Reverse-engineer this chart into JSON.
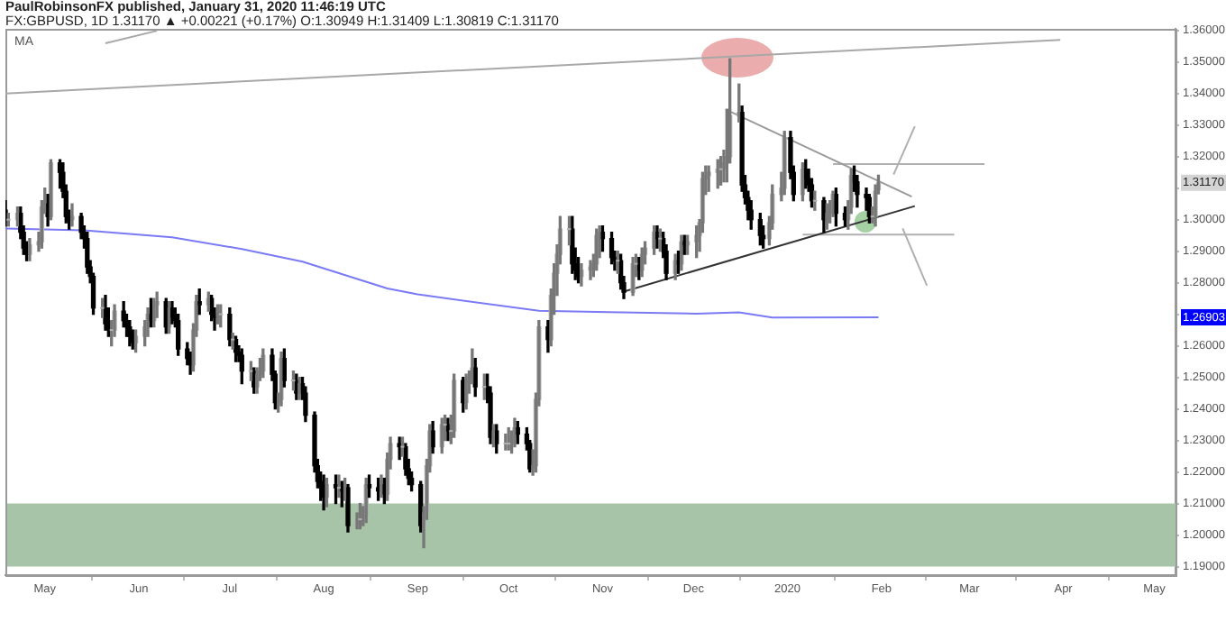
{
  "chart_data": {
    "type": "candlestick",
    "title": "PaulRobinsonFX published, January 31, 2020 11:46:19 UTC",
    "subtitle": "FX:GBPUSD, 1D  1.31170 ▲ +0.00221 (+0.17%) O:1.30949 H:1.31409 L:1.30819 C:1.31170",
    "xlim": [
      "2019-04-18",
      "2020-05-08"
    ],
    "xticks": [
      {
        "value": "2019-05-01",
        "label": "May"
      },
      {
        "value": "2019-06-01",
        "label": "Jun"
      },
      {
        "value": "2019-07-01",
        "label": "Jul"
      },
      {
        "value": "2019-08-01",
        "label": "Aug"
      },
      {
        "value": "2019-09-01",
        "label": "Sep"
      },
      {
        "value": "2019-10-01",
        "label": "Oct"
      },
      {
        "value": "2019-11-01",
        "label": "Nov"
      },
      {
        "value": "2019-12-01",
        "label": "Dec"
      },
      {
        "value": "2020-01-01",
        "label": "2020"
      },
      {
        "value": "2020-02-01",
        "label": "Feb"
      },
      {
        "value": "2020-03-01",
        "label": "Mar"
      },
      {
        "value": "2020-04-01",
        "label": "Apr"
      },
      {
        "value": "2020-05-01",
        "label": "May"
      }
    ],
    "ylim": [
      1.1873,
      1.3605
    ],
    "yticks": [
      {
        "value": 1.19,
        "label": "1.19000"
      },
      {
        "value": 1.2,
        "label": "1.20000"
      },
      {
        "value": 1.21,
        "label": "1.21000"
      },
      {
        "value": 1.22,
        "label": "1.22000"
      },
      {
        "value": 1.23,
        "label": "1.23000"
      },
      {
        "value": 1.24,
        "label": "1.24000"
      },
      {
        "value": 1.25,
        "label": "1.25000"
      },
      {
        "value": 1.26,
        "label": "1.26000"
      },
      {
        "value": 1.27,
        "label": null
      },
      {
        "value": 1.28,
        "label": "1.28000"
      },
      {
        "value": 1.29,
        "label": "1.29000"
      },
      {
        "value": 1.3,
        "label": "1.30000"
      },
      {
        "value": 1.31,
        "label": null
      },
      {
        "value": 1.32,
        "label": "1.32000"
      },
      {
        "value": 1.33,
        "label": "1.33000"
      },
      {
        "value": 1.34,
        "label": "1.34000"
      },
      {
        "value": 1.35,
        "label": "1.35000"
      },
      {
        "value": 1.36,
        "label": "1.36000"
      }
    ],
    "legend": "top left",
    "marker": "none",
    "annotations": [
      "1.31170",
      "1.26903"
    ],
    "bands": [
      {
        "axis": "y",
        "from": 1.19,
        "to": 1.21,
        "color": "#a8c4a8"
      }
    ],
    "series": [
      {
        "type": "line",
        "name": "MA",
        "color": "#7a7af5",
        "x": [
          "2019-04-18",
          "2019-05-14",
          "2019-06-12",
          "2019-07-05",
          "2019-07-25",
          "2019-08-22",
          "2019-09-01",
          "2019-10-11",
          "2019-11-03",
          "2019-12-02",
          "2019-12-16",
          "2019-12-27",
          "2020-01-31"
        ],
        "values": [
          1.2972,
          1.2966,
          1.2944,
          1.2907,
          1.2867,
          1.2782,
          1.2763,
          1.2711,
          1.2707,
          1.2702,
          1.2706,
          1.269,
          1.26903
        ]
      },
      {
        "type": "line",
        "color": "#a8a8a8",
        "x": [
          "2019-04-18",
          "2020-03-31"
        ],
        "values": [
          1.34,
          1.357
        ]
      },
      {
        "type": "line",
        "color": "#a8a8a8",
        "x": [
          "2019-05-21",
          "2019-06-07"
        ],
        "values": [
          1.3559,
          1.3599
        ]
      },
      {
        "type": "line",
        "color": "#9a9a9a",
        "x": [
          "2019-12-13",
          "2020-02-11"
        ],
        "values": [
          1.3343,
          1.3073
        ]
      },
      {
        "type": "line",
        "color": "#333333",
        "x": [
          "2019-11-08",
          "2020-02-12"
        ],
        "values": [
          1.2772,
          1.3043
        ]
      },
      {
        "type": "line",
        "color": "#b0b0b0",
        "x": [
          "2020-01-16",
          "2020-03-06"
        ],
        "values": [
          1.3176,
          1.3176
        ]
      },
      {
        "type": "line",
        "color": "#b0b0b0",
        "x": [
          "2020-01-06",
          "2020-02-25"
        ],
        "values": [
          1.2953,
          1.2953
        ]
      },
      {
        "type": "line",
        "color": "#b0b0b0",
        "x": [
          "2020-02-05",
          "2020-02-12"
        ],
        "values": [
          1.3143,
          1.3296
        ]
      },
      {
        "type": "line",
        "color": "#b0b0b0",
        "x": [
          "2020-02-08",
          "2020-02-16"
        ],
        "values": [
          1.2972,
          1.2791
        ]
      },
      {
        "x": [
          "2019-04-18",
          "2019-04-19",
          "2019-04-22",
          "2019-04-23",
          "2019-04-24",
          "2019-04-25",
          "2019-04-26",
          "2019-04-29",
          "2019-04-30",
          "2019-05-01",
          "2019-05-02",
          "2019-05-03",
          "2019-05-06",
          "2019-05-07",
          "2019-05-08",
          "2019-05-09",
          "2019-05-10",
          "2019-05-13",
          "2019-05-14",
          "2019-05-15",
          "2019-05-16",
          "2019-05-17",
          "2019-05-20",
          "2019-05-21",
          "2019-05-22",
          "2019-05-23",
          "2019-05-24",
          "2019-05-27",
          "2019-05-28",
          "2019-05-29",
          "2019-05-30",
          "2019-05-31",
          "2019-06-03",
          "2019-06-04",
          "2019-06-05",
          "2019-06-06",
          "2019-06-07",
          "2019-06-10",
          "2019-06-11",
          "2019-06-12",
          "2019-06-13",
          "2019-06-14",
          "2019-06-17",
          "2019-06-18",
          "2019-06-19",
          "2019-06-20",
          "2019-06-21",
          "2019-06-24",
          "2019-06-25",
          "2019-06-26",
          "2019-06-27",
          "2019-06-28",
          "2019-07-01",
          "2019-07-02",
          "2019-07-03",
          "2019-07-04",
          "2019-07-05",
          "2019-07-08",
          "2019-07-09",
          "2019-07-10",
          "2019-07-11",
          "2019-07-12",
          "2019-07-15",
          "2019-07-16",
          "2019-07-17",
          "2019-07-18",
          "2019-07-19",
          "2019-07-22",
          "2019-07-23",
          "2019-07-24",
          "2019-07-25",
          "2019-07-26",
          "2019-07-29",
          "2019-07-30",
          "2019-07-31",
          "2019-08-01",
          "2019-08-02",
          "2019-08-05",
          "2019-08-06",
          "2019-08-07",
          "2019-08-08",
          "2019-08-09",
          "2019-08-12",
          "2019-08-13",
          "2019-08-14",
          "2019-08-15",
          "2019-08-16",
          "2019-08-19",
          "2019-08-20",
          "2019-08-21",
          "2019-08-22",
          "2019-08-23",
          "2019-08-26",
          "2019-08-27",
          "2019-08-28",
          "2019-08-29",
          "2019-08-30",
          "2019-09-02",
          "2019-09-03",
          "2019-09-04",
          "2019-09-05",
          "2019-09-06",
          "2019-09-09",
          "2019-09-10",
          "2019-09-11",
          "2019-09-12",
          "2019-09-13",
          "2019-09-16",
          "2019-09-17",
          "2019-09-18",
          "2019-09-19",
          "2019-09-20",
          "2019-09-23",
          "2019-09-24",
          "2019-09-25",
          "2019-09-26",
          "2019-09-27",
          "2019-09-30",
          "2019-10-01",
          "2019-10-02",
          "2019-10-03",
          "2019-10-04",
          "2019-10-07",
          "2019-10-08",
          "2019-10-09",
          "2019-10-10",
          "2019-10-11",
          "2019-10-14",
          "2019-10-15",
          "2019-10-16",
          "2019-10-17",
          "2019-10-18",
          "2019-10-21",
          "2019-10-22",
          "2019-10-23",
          "2019-10-24",
          "2019-10-25",
          "2019-10-28",
          "2019-10-29",
          "2019-10-30",
          "2019-10-31",
          "2019-11-01",
          "2019-11-04",
          "2019-11-05",
          "2019-11-06",
          "2019-11-07",
          "2019-11-08",
          "2019-11-11",
          "2019-11-12",
          "2019-11-13",
          "2019-11-14",
          "2019-11-15",
          "2019-11-18",
          "2019-11-19",
          "2019-11-20",
          "2019-11-21",
          "2019-11-22",
          "2019-11-25",
          "2019-11-26",
          "2019-11-27",
          "2019-11-28",
          "2019-11-29",
          "2019-12-02",
          "2019-12-03",
          "2019-12-04",
          "2019-12-05",
          "2019-12-06",
          "2019-12-09",
          "2019-12-10",
          "2019-12-11",
          "2019-12-12",
          "2019-12-13",
          "2019-12-16",
          "2019-12-17",
          "2019-12-18",
          "2019-12-19",
          "2019-12-20",
          "2019-12-23",
          "2019-12-24",
          "2019-12-26",
          "2019-12-27",
          "2019-12-30",
          "2019-12-31",
          "2020-01-02",
          "2020-01-03",
          "2020-01-06",
          "2020-01-07",
          "2020-01-08",
          "2020-01-09",
          "2020-01-10",
          "2020-01-13",
          "2020-01-14",
          "2020-01-15",
          "2020-01-16",
          "2020-01-17",
          "2020-01-20",
          "2020-01-21",
          "2020-01-22",
          "2020-01-23",
          "2020-01-24",
          "2020-01-27",
          "2020-01-28",
          "2020-01-29",
          "2020-01-30",
          "2020-01-31"
        ],
        "ohlc": [
          [
            1.303,
            1.306,
            1.298,
            1.3
          ],
          [
            1.3,
            1.302,
            1.298,
            1.3
          ],
          [
            1.3,
            1.304,
            1.298,
            1.302
          ],
          [
            1.302,
            1.304,
            1.294,
            1.296
          ],
          [
            1.296,
            1.298,
            1.289,
            1.291
          ],
          [
            1.291,
            1.293,
            1.287,
            1.289
          ],
          [
            1.289,
            1.294,
            1.287,
            1.292
          ],
          [
            1.292,
            1.296,
            1.29,
            1.293
          ],
          [
            1.293,
            1.306,
            1.291,
            1.304
          ],
          [
            1.304,
            1.31,
            1.302,
            1.305
          ],
          [
            1.305,
            1.308,
            1.298,
            1.301
          ],
          [
            1.301,
            1.319,
            1.3,
            1.318
          ],
          [
            1.318,
            1.319,
            1.31,
            1.315
          ],
          [
            1.315,
            1.318,
            1.307,
            1.309
          ],
          [
            1.309,
            1.311,
            1.299,
            1.301
          ],
          [
            1.301,
            1.303,
            1.297,
            1.3
          ],
          [
            1.3,
            1.305,
            1.298,
            1.301
          ],
          [
            1.301,
            1.302,
            1.294,
            1.296
          ],
          [
            1.296,
            1.298,
            1.291,
            1.294
          ],
          [
            1.294,
            1.296,
            1.283,
            1.285
          ],
          [
            1.285,
            1.287,
            1.28,
            1.282
          ],
          [
            1.282,
            1.283,
            1.27,
            1.272
          ],
          [
            1.272,
            1.275,
            1.269,
            1.272
          ],
          [
            1.272,
            1.276,
            1.265,
            1.267
          ],
          [
            1.267,
            1.272,
            1.263,
            1.265
          ],
          [
            1.265,
            1.268,
            1.26,
            1.265
          ],
          [
            1.265,
            1.273,
            1.263,
            1.271
          ],
          [
            1.271,
            1.274,
            1.266,
            1.268
          ],
          [
            1.268,
            1.27,
            1.263,
            1.266
          ],
          [
            1.266,
            1.268,
            1.26,
            1.263
          ],
          [
            1.263,
            1.265,
            1.259,
            1.261
          ],
          [
            1.261,
            1.265,
            1.258,
            1.263
          ],
          [
            1.263,
            1.268,
            1.26,
            1.266
          ],
          [
            1.266,
            1.272,
            1.263,
            1.27
          ],
          [
            1.27,
            1.275,
            1.266,
            1.268
          ],
          [
            1.268,
            1.275,
            1.266,
            1.273
          ],
          [
            1.273,
            1.277,
            1.269,
            1.274
          ],
          [
            1.274,
            1.275,
            1.264,
            1.266
          ],
          [
            1.266,
            1.274,
            1.264,
            1.272
          ],
          [
            1.272,
            1.274,
            1.267,
            1.269
          ],
          [
            1.269,
            1.272,
            1.266,
            1.268
          ],
          [
            1.268,
            1.27,
            1.257,
            1.259
          ],
          [
            1.259,
            1.261,
            1.254,
            1.256
          ],
          [
            1.256,
            1.258,
            1.251,
            1.254
          ],
          [
            1.254,
            1.267,
            1.252,
            1.265
          ],
          [
            1.265,
            1.276,
            1.263,
            1.274
          ],
          [
            1.274,
            1.278,
            1.27,
            1.273
          ],
          [
            1.273,
            1.277,
            1.271,
            1.275
          ],
          [
            1.275,
            1.276,
            1.268,
            1.27
          ],
          [
            1.27,
            1.272,
            1.265,
            1.269
          ],
          [
            1.269,
            1.273,
            1.267,
            1.27
          ],
          [
            1.27,
            1.273,
            1.266,
            1.27
          ],
          [
            1.27,
            1.272,
            1.26,
            1.262
          ],
          [
            1.262,
            1.264,
            1.259,
            1.262
          ],
          [
            1.262,
            1.263,
            1.255,
            1.258
          ],
          [
            1.258,
            1.26,
            1.255,
            1.257
          ],
          [
            1.257,
            1.259,
            1.248,
            1.252
          ],
          [
            1.252,
            1.255,
            1.249,
            1.252
          ],
          [
            1.252,
            1.253,
            1.245,
            1.247
          ],
          [
            1.247,
            1.253,
            1.245,
            1.251
          ],
          [
            1.251,
            1.256,
            1.249,
            1.252
          ],
          [
            1.252,
            1.259,
            1.25,
            1.257
          ],
          [
            1.257,
            1.259,
            1.249,
            1.251
          ],
          [
            1.251,
            1.252,
            1.24,
            1.242
          ],
          [
            1.242,
            1.245,
            1.239,
            1.243
          ],
          [
            1.243,
            1.258,
            1.241,
            1.256
          ],
          [
            1.256,
            1.259,
            1.247,
            1.249
          ],
          [
            1.249,
            1.252,
            1.246,
            1.249
          ],
          [
            1.249,
            1.251,
            1.243,
            1.245
          ],
          [
            1.245,
            1.25,
            1.243,
            1.248
          ],
          [
            1.248,
            1.25,
            1.243,
            1.245
          ],
          [
            1.245,
            1.247,
            1.236,
            1.238
          ],
          [
            1.238,
            1.239,
            1.22,
            1.222
          ],
          [
            1.222,
            1.224,
            1.215,
            1.217
          ],
          [
            1.217,
            1.22,
            1.211,
            1.215
          ],
          [
            1.215,
            1.219,
            1.208,
            1.212
          ],
          [
            1.212,
            1.218,
            1.209,
            1.216
          ],
          [
            1.216,
            1.219,
            1.21,
            1.215
          ],
          [
            1.215,
            1.219,
            1.212,
            1.215
          ],
          [
            1.215,
            1.217,
            1.209,
            1.214
          ],
          [
            1.214,
            1.218,
            1.211,
            1.215
          ],
          [
            1.215,
            1.216,
            1.201,
            1.203
          ],
          [
            1.203,
            1.207,
            1.202,
            1.205
          ],
          [
            1.205,
            1.21,
            1.202,
            1.205
          ],
          [
            1.205,
            1.209,
            1.203,
            1.206
          ],
          [
            1.206,
            1.218,
            1.204,
            1.216
          ],
          [
            1.216,
            1.219,
            1.212,
            1.215
          ],
          [
            1.215,
            1.218,
            1.211,
            1.214
          ],
          [
            1.214,
            1.219,
            1.212,
            1.216
          ],
          [
            1.216,
            1.218,
            1.21,
            1.213
          ],
          [
            1.213,
            1.226,
            1.211,
            1.224
          ],
          [
            1.224,
            1.231,
            1.221,
            1.229
          ],
          [
            1.229,
            1.231,
            1.224,
            1.228
          ],
          [
            1.228,
            1.231,
            1.225,
            1.228
          ],
          [
            1.228,
            1.229,
            1.219,
            1.221
          ],
          [
            1.221,
            1.224,
            1.216,
            1.218
          ],
          [
            1.218,
            1.22,
            1.214,
            1.216
          ],
          [
            1.216,
            1.217,
            1.201,
            1.203
          ],
          [
            1.203,
            1.209,
            1.196,
            1.207
          ],
          [
            1.207,
            1.224,
            1.205,
            1.222
          ],
          [
            1.222,
            1.235,
            1.22,
            1.233
          ],
          [
            1.233,
            1.236,
            1.226,
            1.228
          ],
          [
            1.228,
            1.237,
            1.226,
            1.235
          ],
          [
            1.235,
            1.238,
            1.23,
            1.235
          ],
          [
            1.235,
            1.237,
            1.23,
            1.233
          ],
          [
            1.233,
            1.238,
            1.229,
            1.233
          ],
          [
            1.233,
            1.251,
            1.231,
            1.249
          ],
          [
            1.249,
            1.25,
            1.239,
            1.242
          ],
          [
            1.242,
            1.251,
            1.24,
            1.249
          ],
          [
            1.249,
            1.252,
            1.245,
            1.25
          ],
          [
            1.25,
            1.259,
            1.248,
            1.253
          ],
          [
            1.253,
            1.256,
            1.244,
            1.247
          ],
          [
            1.247,
            1.251,
            1.243,
            1.247
          ],
          [
            1.247,
            1.251,
            1.242,
            1.245
          ],
          [
            1.245,
            1.247,
            1.229,
            1.231
          ],
          [
            1.231,
            1.235,
            1.228,
            1.233
          ],
          [
            1.233,
            1.235,
            1.226,
            1.229
          ],
          [
            1.229,
            1.232,
            1.227,
            1.229
          ],
          [
            1.229,
            1.234,
            1.227,
            1.229
          ],
          [
            1.229,
            1.233,
            1.226,
            1.231
          ],
          [
            1.231,
            1.237,
            1.228,
            1.234
          ],
          [
            1.234,
            1.236,
            1.229,
            1.232
          ],
          [
            1.232,
            1.234,
            1.227,
            1.229
          ],
          [
            1.229,
            1.23,
            1.22,
            1.221
          ],
          [
            1.221,
            1.227,
            1.219,
            1.222
          ],
          [
            1.222,
            1.245,
            1.22,
            1.243
          ],
          [
            1.243,
            1.268,
            1.241,
            1.266
          ],
          [
            1.266,
            1.268,
            1.258,
            1.262
          ],
          [
            1.262,
            1.278,
            1.26,
            1.276
          ],
          [
            1.276,
            1.286,
            1.27,
            1.283
          ],
          [
            1.283,
            1.292,
            1.276,
            1.289
          ],
          [
            1.289,
            1.301,
            1.286,
            1.297
          ],
          [
            1.297,
            1.301,
            1.292,
            1.297
          ],
          [
            1.297,
            1.301,
            1.283,
            1.286
          ],
          [
            1.286,
            1.291,
            1.281,
            1.284
          ],
          [
            1.284,
            1.288,
            1.28,
            1.282
          ],
          [
            1.282,
            1.286,
            1.279,
            1.284
          ],
          [
            1.284,
            1.287,
            1.281,
            1.285
          ],
          [
            1.285,
            1.289,
            1.282,
            1.286
          ],
          [
            1.286,
            1.297,
            1.284,
            1.295
          ],
          [
            1.295,
            1.298,
            1.288,
            1.296
          ],
          [
            1.296,
            1.298,
            1.29,
            1.294
          ],
          [
            1.294,
            1.296,
            1.286,
            1.288
          ],
          [
            1.288,
            1.29,
            1.284,
            1.287
          ],
          [
            1.287,
            1.29,
            1.283,
            1.287
          ],
          [
            1.287,
            1.289,
            1.278,
            1.28
          ],
          [
            1.28,
            1.282,
            1.275,
            1.277
          ],
          [
            1.277,
            1.288,
            1.276,
            1.286
          ],
          [
            1.286,
            1.289,
            1.282,
            1.286
          ],
          [
            1.286,
            1.288,
            1.281,
            1.284
          ],
          [
            1.284,
            1.291,
            1.282,
            1.289
          ],
          [
            1.289,
            1.293,
            1.286,
            1.291
          ],
          [
            1.291,
            1.298,
            1.289,
            1.296
          ],
          [
            1.296,
            1.298,
            1.291,
            1.294
          ],
          [
            1.294,
            1.297,
            1.29,
            1.294
          ],
          [
            1.294,
            1.296,
            1.288,
            1.29
          ],
          [
            1.29,
            1.292,
            1.281,
            1.283
          ],
          [
            1.283,
            1.289,
            1.281,
            1.287
          ],
          [
            1.287,
            1.29,
            1.283,
            1.286
          ],
          [
            1.286,
            1.295,
            1.284,
            1.293
          ],
          [
            1.293,
            1.295,
            1.289,
            1.292
          ],
          [
            1.292,
            1.295,
            1.289,
            1.293
          ],
          [
            1.293,
            1.298,
            1.288,
            1.295
          ],
          [
            1.295,
            1.3,
            1.29,
            1.299
          ],
          [
            1.299,
            1.315,
            1.296,
            1.313
          ],
          [
            1.313,
            1.317,
            1.308,
            1.314
          ],
          [
            1.314,
            1.317,
            1.309,
            1.315
          ],
          [
            1.315,
            1.319,
            1.31,
            1.316
          ],
          [
            1.316,
            1.32,
            1.311,
            1.316
          ],
          [
            1.316,
            1.322,
            1.312,
            1.318
          ],
          [
            1.318,
            1.335,
            1.312,
            1.32
          ],
          [
            1.32,
            1.351,
            1.318,
            1.333
          ],
          [
            1.333,
            1.343,
            1.331,
            1.334
          ],
          [
            1.334,
            1.336,
            1.309,
            1.311
          ],
          [
            1.311,
            1.314,
            1.305,
            1.307
          ],
          [
            1.307,
            1.309,
            1.3,
            1.303
          ],
          [
            1.303,
            1.306,
            1.297,
            1.3
          ],
          [
            1.3,
            1.302,
            1.292,
            1.295
          ],
          [
            1.295,
            1.298,
            1.291,
            1.294
          ],
          [
            1.294,
            1.301,
            1.292,
            1.299
          ],
          [
            1.299,
            1.311,
            1.297,
            1.308
          ],
          [
            1.308,
            1.315,
            1.306,
            1.31
          ],
          [
            1.31,
            1.328,
            1.308,
            1.326
          ],
          [
            1.326,
            1.328,
            1.313,
            1.315
          ],
          [
            1.315,
            1.317,
            1.306,
            1.308
          ],
          [
            1.308,
            1.318,
            1.306,
            1.316
          ],
          [
            1.316,
            1.319,
            1.31,
            1.313
          ],
          [
            1.313,
            1.316,
            1.309,
            1.311
          ],
          [
            1.311,
            1.313,
            1.304,
            1.306
          ],
          [
            1.306,
            1.309,
            1.303,
            1.306
          ],
          [
            1.306,
            1.307,
            1.296,
            1.3
          ],
          [
            1.3,
            1.305,
            1.297,
            1.302
          ],
          [
            1.302,
            1.306,
            1.299,
            1.304
          ],
          [
            1.304,
            1.309,
            1.301,
            1.308
          ],
          [
            1.308,
            1.31,
            1.298,
            1.302
          ],
          [
            1.302,
            1.304,
            1.298,
            1.3
          ],
          [
            1.3,
            1.306,
            1.297,
            1.304
          ],
          [
            1.304,
            1.316,
            1.302,
            1.314
          ],
          [
            1.314,
            1.317,
            1.309,
            1.312
          ],
          [
            1.312,
            1.314,
            1.304,
            1.308
          ],
          [
            1.308,
            1.31,
            1.303,
            1.307
          ],
          [
            1.307,
            1.308,
            1.299,
            1.301
          ],
          [
            1.301,
            1.304,
            1.299,
            1.301
          ],
          [
            1.301,
            1.311,
            1.298,
            1.309
          ],
          [
            1.30949,
            1.31409,
            1.30819,
            1.3117
          ]
        ],
        "colors": [
          "#000000",
          "#b2b2b2",
          "#b2b2b2",
          "#000000",
          "#000000",
          "#000000",
          "#b2b2b2",
          "#b2b2b2",
          "#b2b2b2",
          "#b2b2b2",
          "#000000",
          "#b2b2b2",
          "#000000",
          "#000000",
          "#000000",
          "#000000",
          "#b2b2b2",
          "#000000",
          "#000000",
          "#000000",
          "#000000",
          "#000000",
          "#b2b2b2",
          "#000000",
          "#000000",
          "#b2b2b2",
          "#b2b2b2",
          "#000000",
          "#000000",
          "#000000",
          "#000000",
          "#b2b2b2",
          "#b2b2b2",
          "#b2b2b2",
          "#000000",
          "#b2b2b2",
          "#b2b2b2",
          "#000000",
          "#b2b2b2",
          "#000000",
          "#000000",
          "#000000",
          "#000000",
          "#000000",
          "#b2b2b2",
          "#b2b2b2",
          "#000000",
          "#b2b2b2",
          "#000000",
          "#000000",
          "#b2b2b2",
          "#b2b2b2",
          "#000000",
          "#b2b2b2",
          "#000000",
          "#000000",
          "#000000",
          "#b2b2b2",
          "#000000",
          "#b2b2b2",
          "#b2b2b2",
          "#b2b2b2",
          "#000000",
          "#000000",
          "#b2b2b2",
          "#b2b2b2",
          "#000000",
          "#b2b2b2",
          "#000000",
          "#b2b2b2",
          "#000000",
          "#000000",
          "#000000",
          "#000000",
          "#000000",
          "#000000",
          "#b2b2b2",
          "#000000",
          "#b2b2b2",
          "#000000",
          "#b2b2b2",
          "#000000",
          "#b2b2b2",
          "#b2b2b2",
          "#b2b2b2",
          "#b2b2b2",
          "#000000",
          "#000000",
          "#b2b2b2",
          "#000000",
          "#b2b2b2",
          "#b2b2b2",
          "#000000",
          "#b2b2b2",
          "#000000",
          "#000000",
          "#000000",
          "#000000",
          "#b2b2b2",
          "#b2b2b2",
          "#b2b2b2",
          "#000000",
          "#b2b2b2",
          "#b2b2b2",
          "#000000",
          "#b2b2b2",
          "#b2b2b2",
          "#000000",
          "#b2b2b2",
          "#b2b2b2",
          "#b2b2b2",
          "#000000",
          "#b2b2b2",
          "#000000",
          "#000000",
          "#b2b2b2",
          "#000000",
          "#b2b2b2",
          "#b2b2b2",
          "#b2b2b2",
          "#b2b2b2",
          "#000000",
          "#000000",
          "#000000",
          "#b2b2b2",
          "#b2b2b2",
          "#b2b2b2",
          "#000000",
          "#b2b2b2",
          "#b2b2b2",
          "#b2b2b2",
          "#b2b2b2",
          "#b2b2b2",
          "#000000",
          "#000000",
          "#000000",
          "#b2b2b2",
          "#b2b2b2",
          "#b2b2b2",
          "#b2b2b2",
          "#b2b2b2",
          "#000000",
          "#000000",
          "#000000",
          "#b2b2b2",
          "#000000",
          "#000000",
          "#b2b2b2",
          "#b2b2b2",
          "#000000",
          "#b2b2b2",
          "#b2b2b2",
          "#b2b2b2",
          "#000000",
          "#b2b2b2",
          "#000000",
          "#000000",
          "#b2b2b2",
          "#000000",
          "#b2b2b2",
          "#000000",
          "#b2b2b2",
          "#b2b2b2",
          "#b2b2b2",
          "#b2b2b2",
          "#b2b2b2",
          "#b2b2b2",
          "#b2b2b2",
          "#b2b2b2",
          "#b2b2b2",
          "#b2b2b2",
          "#b2b2b2",
          "#b2b2b2",
          "#000000",
          "#000000",
          "#000000",
          "#000000",
          "#000000",
          "#000000",
          "#b2b2b2",
          "#b2b2b2",
          "#b2b2b2",
          "#b2b2b2",
          "#000000",
          "#000000",
          "#b2b2b2",
          "#000000",
          "#000000",
          "#000000",
          "#b2b2b2",
          "#000000",
          "#b2b2b2",
          "#b2b2b2",
          "#b2b2b2",
          "#000000",
          "#000000",
          "#b2b2b2",
          "#b2b2b2",
          "#000000",
          "#000000",
          "#000000",
          "#000000",
          "#b2b2b2",
          "#b2b2b2",
          "#b2b2b2"
        ]
      }
    ]
  }
}
